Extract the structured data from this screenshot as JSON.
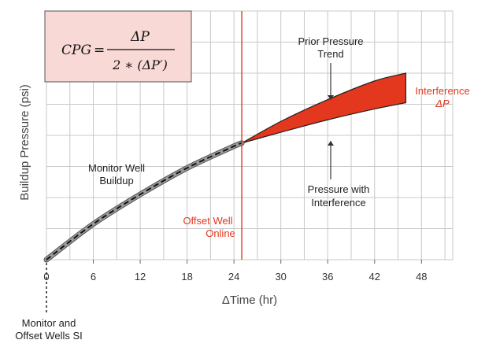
{
  "chart_data": {
    "type": "line",
    "title": "",
    "xlabel": "ΔTime (hr)",
    "ylabel": "Buildup Pressure (psi)",
    "xlim": [
      0,
      52
    ],
    "ylim": [
      0,
      8
    ],
    "x_ticks": [
      0,
      6,
      12,
      18,
      24,
      30,
      36,
      42,
      48
    ],
    "grid": true,
    "series": [
      {
        "name": "Monitor Well Buildup",
        "x": [
          0,
          6,
          12,
          18,
          24,
          25
        ],
        "y": [
          0.0,
          1.15,
          2.1,
          2.95,
          3.65,
          3.75
        ]
      },
      {
        "name": "Prior Pressure Trend",
        "x": [
          25,
          30,
          36,
          42,
          46
        ],
        "y": [
          3.75,
          4.45,
          5.15,
          5.75,
          6.0
        ]
      },
      {
        "name": "Pressure with Interference",
        "x": [
          25,
          30,
          36,
          42,
          46
        ],
        "y": [
          3.75,
          4.1,
          4.5,
          4.85,
          5.05
        ]
      }
    ],
    "event_line_x": 25,
    "formula": {
      "lhs": "CPG",
      "numerator": "ΔP",
      "denominator": "2 ∗ (ΔP′)"
    },
    "annotations": {
      "monitor_buildup": [
        "Monitor Well",
        "Buildup"
      ],
      "prior_trend": [
        "Prior Pressure",
        "Trend"
      ],
      "pressure_interference": [
        "Pressure with",
        "Interference"
      ],
      "interference": [
        "Interference",
        "ΔP"
      ],
      "offset_online": [
        "Offset Well",
        "Online"
      ],
      "shut_in": [
        "Monitor and",
        "Offset Wells SI"
      ]
    },
    "colors": {
      "interference": "#e3371e",
      "buildup_fill": "#9a9a9a",
      "formula_box": "#f9d9d6",
      "grid": "#c8c8c8"
    }
  }
}
